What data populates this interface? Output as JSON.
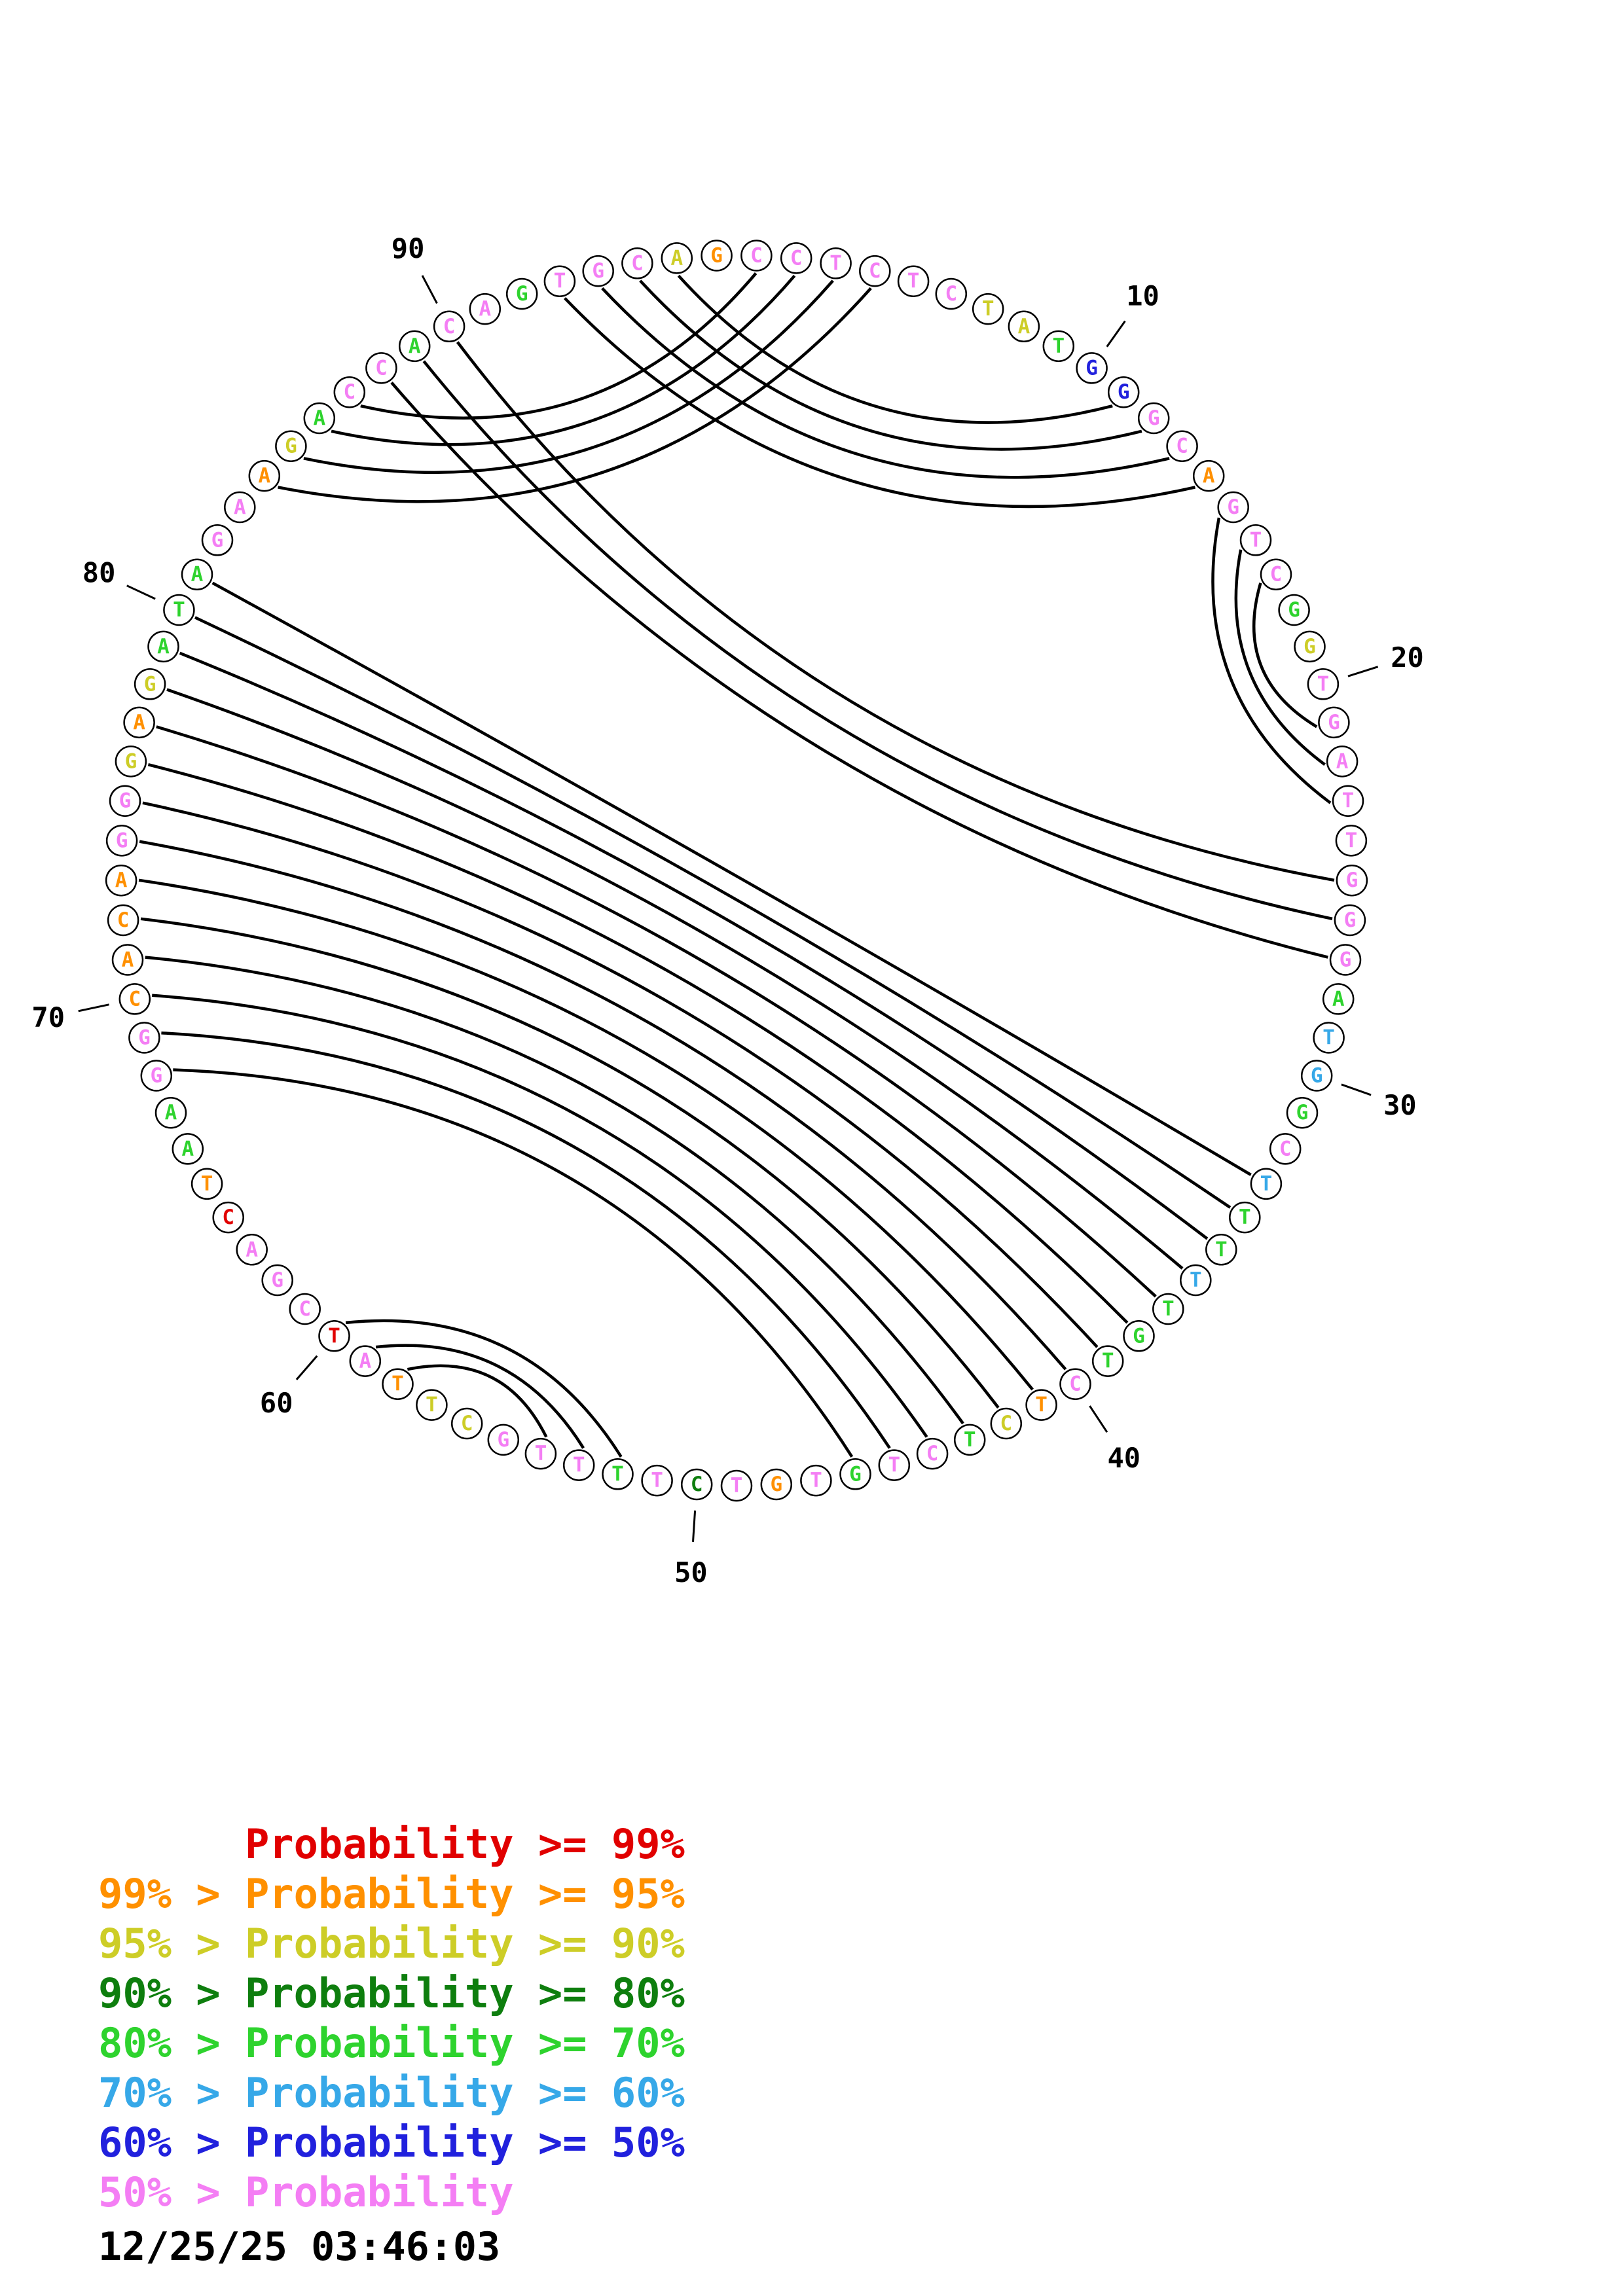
{
  "plot": {
    "type": "rna-circle-probability-plot",
    "sequence": "CCTCTCTATGGGCAGTCGGTGATTGGGATGGCTTTTTGTCTCTCTGTGTCTTTTGCTTATCGACTAAGGCACAGGGAGATAGAAGACCACAGTGCAG",
    "probability_classes": "ppppppyygbbppopppgyppppppppgllgplgglgggpoygppgpopdpgpppyyoprppproggppooooppyoygggppoygppgppgpppyo",
    "class_code_key": {
      "r": "red",
      "o": "orange",
      "y": "yellow",
      "d": "darkgreen",
      "g": "green",
      "l": "lightblue",
      "b": "blue",
      "p": "pink"
    },
    "pairs": [
      [
        1,
        87
      ],
      [
        2,
        86
      ],
      [
        3,
        85
      ],
      [
        4,
        84
      ],
      [
        11,
        96
      ],
      [
        12,
        95
      ],
      [
        13,
        94
      ],
      [
        14,
        93
      ],
      [
        15,
        23
      ],
      [
        16,
        22
      ],
      [
        17,
        21
      ],
      [
        25,
        90
      ],
      [
        26,
        89
      ],
      [
        27,
        88
      ],
      [
        33,
        81
      ],
      [
        34,
        80
      ],
      [
        35,
        79
      ],
      [
        36,
        78
      ],
      [
        37,
        77
      ],
      [
        38,
        76
      ],
      [
        39,
        75
      ],
      [
        40,
        74
      ],
      [
        41,
        73
      ],
      [
        42,
        72
      ],
      [
        43,
        71
      ],
      [
        44,
        70
      ],
      [
        45,
        69
      ],
      [
        46,
        68
      ],
      [
        52,
        60
      ],
      [
        53,
        59
      ],
      [
        54,
        58
      ]
    ],
    "position_labels": [
      10,
      20,
      30,
      40,
      50,
      60,
      70,
      80,
      90
    ]
  },
  "colors": {
    "red": "#e10000",
    "orange": "#ff9000",
    "yellow": "#cdcd27",
    "darkgreen": "#0e7e0e",
    "green": "#2ed32e",
    "lightblue": "#36a8e8",
    "blue": "#2121dd",
    "pink": "#f47ef4",
    "arc": "#000000",
    "outline": "#000000"
  },
  "legend": {
    "lines": [
      {
        "text": "      Probability >= 99%",
        "color": "red"
      },
      {
        "text": "99% > Probability >= 95%",
        "color": "orange"
      },
      {
        "text": "95% > Probability >= 90%",
        "color": "yellow"
      },
      {
        "text": "90% > Probability >= 80%",
        "color": "darkgreen"
      },
      {
        "text": "80% > Probability >= 70%",
        "color": "green"
      },
      {
        "text": "70% > Probability >= 60%",
        "color": "lightblue"
      },
      {
        "text": "60% > Probability >= 50%",
        "color": "blue"
      },
      {
        "text": "50% > Probability",
        "color": "pink"
      }
    ]
  },
  "timestamp": "12/25/25 03:46:03"
}
